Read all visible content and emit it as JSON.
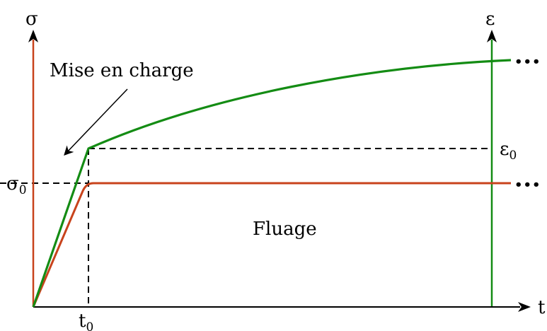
{
  "labels": {
    "sigma_axis": "σ",
    "epsilon_axis": "ε",
    "time_axis": "t",
    "sigma_zero": "σ",
    "sigma_zero_sub": "0",
    "epsilon_zero": "ε",
    "epsilon_zero_sub": "0",
    "t_zero": "t",
    "t_zero_sub": "0",
    "loading_note": "Mise en charge",
    "creep_region": "Fluage",
    "continuation_top": "•••",
    "continuation_bottom": "•••"
  },
  "colors": {
    "stress": "#c8431c",
    "strain": "#148c14",
    "axis": "#000000",
    "dashed": "#000000"
  }
}
